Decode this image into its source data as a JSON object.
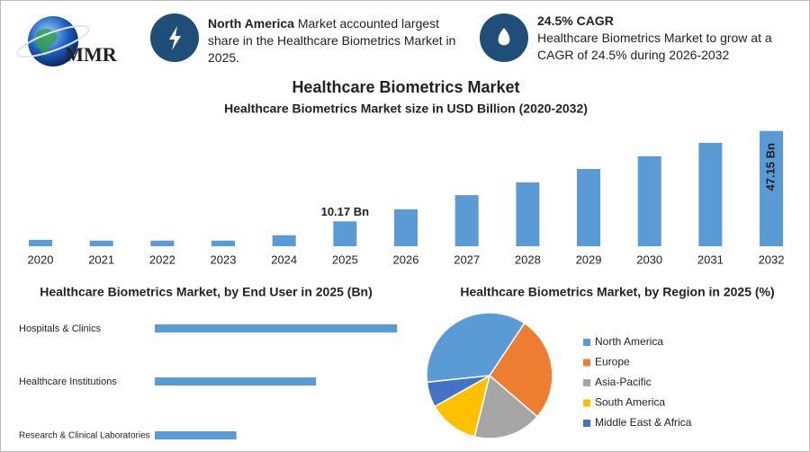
{
  "header": {
    "logo": "MMR",
    "left": {
      "highlight": "North America",
      "text": " Market accounted largest share in the Healthcare Biometrics Market in 2025."
    },
    "right": {
      "title": "24.5% CAGR",
      "text": "Healthcare Biometrics Market to grow at a CAGR of 24.5% during 2026-2032"
    }
  },
  "chart_data": [
    {
      "type": "bar",
      "title": "Healthcare Biometrics Market",
      "subtitle": "Healthcare Biometrics Market size in USD Billion (2020-2032)",
      "categories": [
        "2020",
        "2021",
        "2022",
        "2023",
        "2024",
        "2025",
        "2026",
        "2027",
        "2028",
        "2029",
        "2030",
        "2031",
        "2032"
      ],
      "values": [
        2.6,
        2.3,
        2.3,
        2.3,
        4.5,
        10.17,
        15.1,
        20.9,
        26.1,
        31.6,
        36.8,
        42.3,
        47.15
      ],
      "value_labels": [
        null,
        null,
        null,
        null,
        null,
        "10.17 Bn",
        null,
        null,
        null,
        null,
        null,
        null,
        "47.15 Bn"
      ],
      "color": "#5b9bd5"
    },
    {
      "type": "bar",
      "orientation": "horizontal",
      "title": "Healthcare Biometrics Market, by End User in 2025 (Bn)",
      "categories": [
        "Hospitals & Clinics",
        "Healthcare Institutions",
        "Research & Clinical Laboratories"
      ],
      "values": [
        5.08,
        3.38,
        1.71
      ],
      "color": "#5b9bd5"
    },
    {
      "type": "pie",
      "title": "Healthcare Biometrics Market, by Region in 2025 (%)",
      "categories": [
        "North America",
        "Europe",
        "Asia-Pacific",
        "South America",
        "Middle East & Africa"
      ],
      "values": [
        36,
        27,
        17.5,
        13,
        6.5
      ],
      "colors": [
        "#5b9bd5",
        "#ed7d31",
        "#a5a5a5",
        "#ffc000",
        "#4472c4"
      ]
    }
  ]
}
